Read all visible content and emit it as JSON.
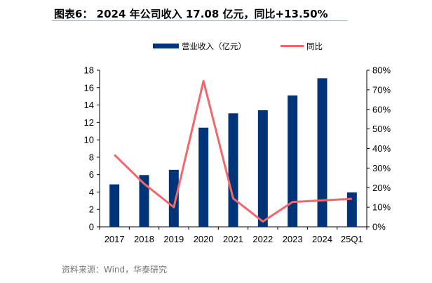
{
  "title": "图表6：  2024 年公司收入 17.08 亿元，同比+13.50%",
  "source": "资料来源：Wind，华泰研究",
  "colors": {
    "bar": "#003478",
    "line": "#f4666a"
  },
  "chart_data": {
    "type": "bar",
    "title": "图表6：  2024 年公司收入 17.08 亿元，同比+13.50%",
    "categories": [
      "2017",
      "2018",
      "2019",
      "2020",
      "2021",
      "2022",
      "2023",
      "2024",
      "25Q1"
    ],
    "series": [
      {
        "name": "营业收入（亿元）",
        "type": "bar",
        "axis": "left",
        "values": [
          4.88,
          5.95,
          6.55,
          11.4,
          13.05,
          13.4,
          15.1,
          17.08,
          3.95
        ]
      },
      {
        "name": "同比",
        "type": "line",
        "axis": "right",
        "values": [
          36.8,
          22.0,
          10.0,
          74.5,
          14.5,
          2.7,
          12.7,
          13.5,
          14.3
        ]
      }
    ],
    "ylim": [
      0,
      18
    ],
    "yticks": [
      "0",
      "2",
      "4",
      "6",
      "8",
      "10",
      "12",
      "14",
      "16",
      "18"
    ],
    "y2lim": [
      0,
      80
    ],
    "y2ticks": [
      "0%",
      "10%",
      "20%",
      "30%",
      "40%",
      "50%",
      "60%",
      "70%",
      "80%"
    ],
    "legend": "top-center",
    "grid": false
  }
}
